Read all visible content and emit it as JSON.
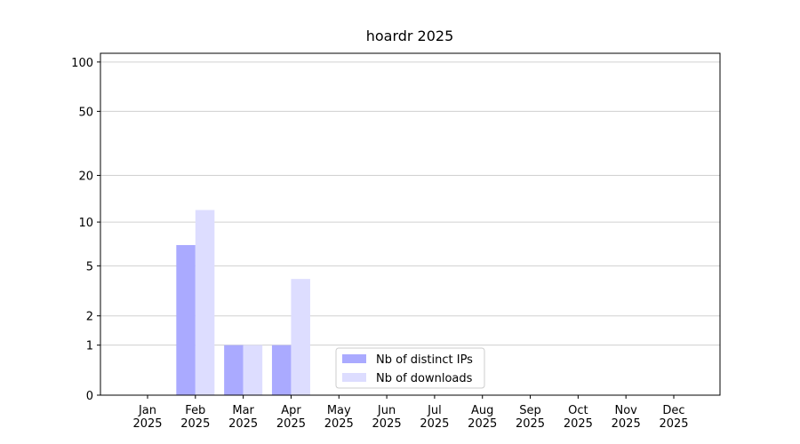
{
  "chart_data": {
    "type": "bar",
    "title": "hoardr 2025",
    "categories": [
      "Jan\n2025",
      "Feb\n2025",
      "Mar\n2025",
      "Apr\n2025",
      "May\n2025",
      "Jun\n2025",
      "Jul\n2025",
      "Aug\n2025",
      "Sep\n2025",
      "Oct\n2025",
      "Nov\n2025",
      "Dec\n2025"
    ],
    "series": [
      {
        "name": "Nb of distinct IPs",
        "color": "#aaaaff",
        "values": [
          0,
          7,
          1,
          1,
          0,
          0,
          0,
          0,
          0,
          0,
          0,
          0
        ]
      },
      {
        "name": "Nb of downloads",
        "color": "#ddddff",
        "values": [
          0,
          12,
          1,
          4,
          0,
          0,
          0,
          0,
          0,
          0,
          0,
          0
        ]
      }
    ],
    "yscale": "log1p",
    "ylim": [
      0,
      113
    ],
    "yticks": [
      0,
      1,
      2,
      5,
      10,
      20,
      50,
      100
    ],
    "grid": true,
    "legend": "lower center"
  }
}
